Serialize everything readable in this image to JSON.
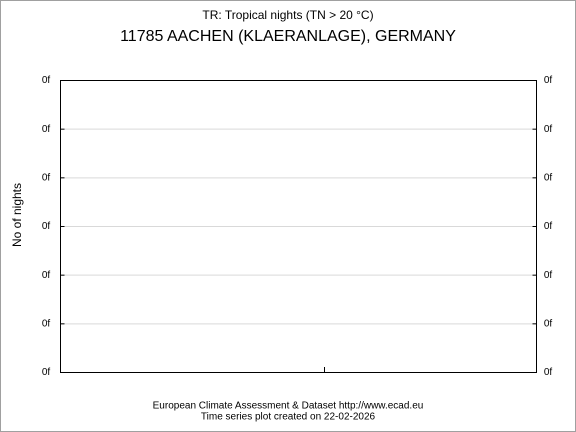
{
  "chart_data": {
    "type": "line",
    "subtitle": "TR: Tropical nights (TN > 20 °C)",
    "title": "11785 AACHEN (KLAERANLAGE), GERMANY",
    "ylabel": "No of nights",
    "footer": [
      "European Climate Assessment & Dataset  http://www.ecad.eu",
      "Time series plot created on 22-02-2026"
    ],
    "ylim": [
      0,
      6
    ],
    "yticks": [
      {
        "value": 0,
        "label": "0f"
      },
      {
        "value": 1,
        "label": "0f"
      },
      {
        "value": 2,
        "label": "0f"
      },
      {
        "value": 3,
        "label": "0f"
      },
      {
        "value": 4,
        "label": "0f"
      },
      {
        "value": 5,
        "label": "0f"
      },
      {
        "value": 6,
        "label": "0f"
      }
    ],
    "grid": true
  }
}
